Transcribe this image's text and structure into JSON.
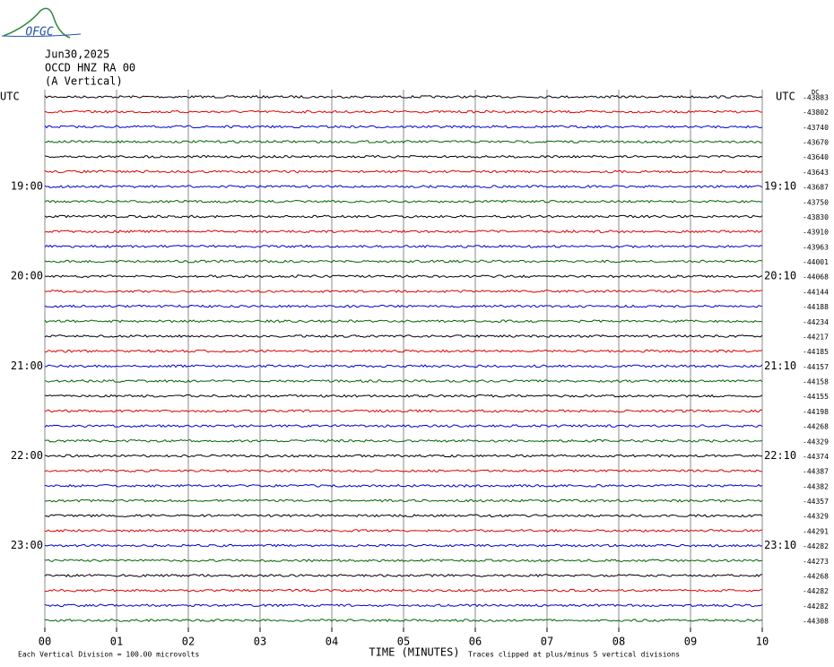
{
  "logo": "OFGC",
  "header": {
    "date": "Jun30,2025",
    "station": "OCCD HNZ RA 00",
    "component": "(A Vertical)"
  },
  "chart_data": {
    "type": "helicorder",
    "xlabel": "TIME (MINUTES)",
    "xlim": [
      0,
      10
    ],
    "xticks": [
      {
        "value": 0,
        "label": "00"
      },
      {
        "value": 1,
        "label": "01"
      },
      {
        "value": 2,
        "label": "02"
      },
      {
        "value": 3,
        "label": "03"
      },
      {
        "value": 4,
        "label": "04"
      },
      {
        "value": 5,
        "label": "05"
      },
      {
        "value": 6,
        "label": "06"
      },
      {
        "value": 7,
        "label": "07"
      },
      {
        "value": 8,
        "label": "08"
      },
      {
        "value": 9,
        "label": "09"
      },
      {
        "value": 10,
        "label": "10"
      }
    ],
    "left_labels": [
      "UTC",
      null,
      null,
      null,
      null,
      null,
      "19:00",
      null,
      null,
      null,
      null,
      null,
      "20:00",
      null,
      null,
      null,
      null,
      null,
      "21:00",
      null,
      null,
      null,
      null,
      null,
      "22:00",
      null,
      null,
      null,
      null,
      null,
      "23:00",
      null,
      null,
      null,
      null,
      null
    ],
    "right_labels": [
      "UTC",
      null,
      null,
      null,
      null,
      null,
      "19:10",
      null,
      null,
      null,
      null,
      null,
      "20:10",
      null,
      null,
      null,
      null,
      null,
      "21:10",
      null,
      null,
      null,
      null,
      null,
      "22:10",
      null,
      null,
      null,
      null,
      null,
      "23:10",
      null,
      null,
      null,
      null,
      null
    ],
    "dc_label": "DC",
    "dc_offsets": [
      -43883,
      -43802,
      -43740,
      -43670,
      -43640,
      -43643,
      -43687,
      -43750,
      -43830,
      -43910,
      -43963,
      -44001,
      -44068,
      -44144,
      -44188,
      -44234,
      -44217,
      -44185,
      -44157,
      -44158,
      -44155,
      -44198,
      -44268,
      -44329,
      -44374,
      -44387,
      -44382,
      -44357,
      -44329,
      -44291,
      -44282,
      -44273,
      -44268,
      -44282,
      -44282,
      -44308
    ],
    "trace_colors": [
      "#000000",
      "#e00000",
      "#0000d0",
      "#006400"
    ],
    "notes": {
      "scale": "Each Vertical Division =  100.00 microvolts",
      "clip": "Traces clipped at plus/minus 5 vertical divisions"
    }
  }
}
